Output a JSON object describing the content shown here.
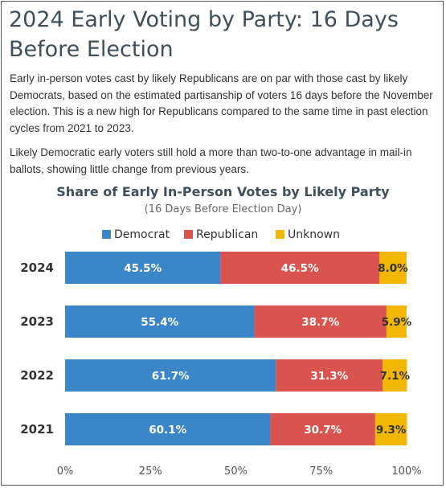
{
  "header": {
    "title": "2024 Early Voting by Party: 16 Days Before Election"
  },
  "body": {
    "paragraph1": "Early in-person votes cast by likely Republicans are on par with those cast by likely Democrats, based on the estimated partisanship of voters 16 days before the November election. This is a new high for Republicans compared to the same time in past election cycles from 2021 to 2023.",
    "paragraph2": "Likely Democratic early voters still hold a more than two-to-one advantage in mail-in ballots, showing little change from previous years."
  },
  "chart_data": {
    "type": "bar",
    "orientation": "horizontal",
    "stacked": true,
    "title": "Share of Early In-Person Votes by Likely Party",
    "subtitle": "(16 Days Before Election Day)",
    "categories": [
      "2024",
      "2023",
      "2022",
      "2021"
    ],
    "series": [
      {
        "name": "Democrat",
        "color": "#3a86c8",
        "label_color": "#ffffff",
        "values": [
          45.5,
          55.4,
          61.7,
          60.1
        ],
        "labels": [
          "45.5%",
          "55.4%",
          "61.7%",
          "60.1%"
        ]
      },
      {
        "name": "Republican",
        "color": "#d9534f",
        "label_color": "#ffffff",
        "values": [
          46.5,
          38.7,
          31.3,
          30.7
        ],
        "labels": [
          "46.5%",
          "38.7%",
          "31.3%",
          "30.7%"
        ]
      },
      {
        "name": "Unknown",
        "color": "#f2b705",
        "label_color": "#333333",
        "values": [
          8.0,
          5.9,
          7.1,
          9.3
        ],
        "labels": [
          "8.0%",
          "5.9%",
          "7.1%",
          "9.3%"
        ]
      }
    ],
    "xlim": [
      0,
      100
    ],
    "ticks": [
      0,
      25,
      50,
      75,
      100
    ],
    "tick_labels": [
      "0%",
      "25%",
      "50%",
      "75%",
      "100%"
    ],
    "grid": false,
    "legend_position": "top-center"
  }
}
